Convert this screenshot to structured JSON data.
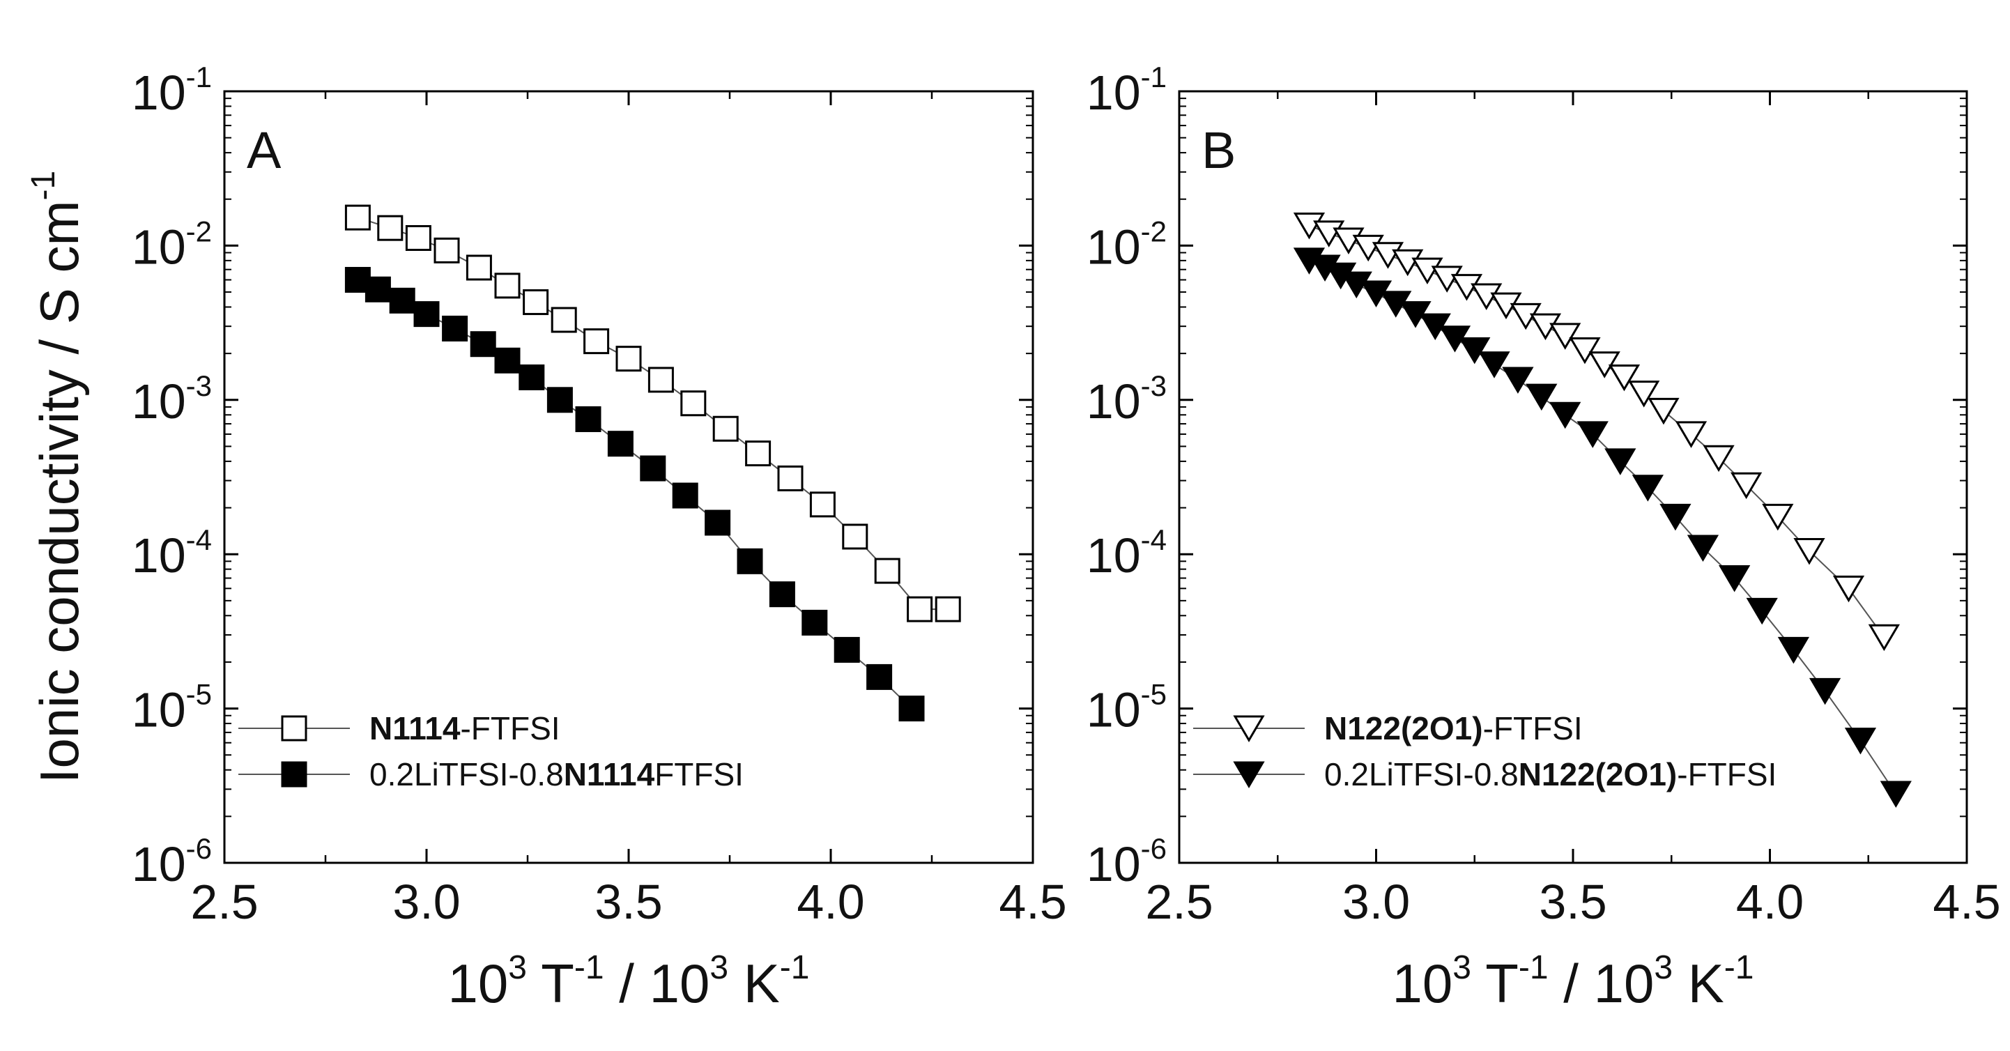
{
  "chart_data": [
    {
      "type": "scatter",
      "panel_label": "A",
      "xlabel": "10^3 T^-1 / 10^3 K^-1",
      "ylabel": "Ionic conductivity / S cm^-1",
      "xlim": [
        2.5,
        4.5
      ],
      "ylim": [
        1e-06,
        0.1
      ],
      "yscale": "log",
      "x_ticks": [
        "2.5",
        "3.0",
        "3.5",
        "4.0",
        "4.5"
      ],
      "y_ticks": [
        {
          "base": "10",
          "exp": "-1",
          "value": 0.1
        },
        {
          "base": "10",
          "exp": "-2",
          "value": 0.01
        },
        {
          "base": "10",
          "exp": "-3",
          "value": 0.001
        },
        {
          "base": "10",
          "exp": "-4",
          "value": 0.0001
        },
        {
          "base": "10",
          "exp": "-5",
          "value": 1e-05
        },
        {
          "base": "10",
          "exp": "-6",
          "value": 1e-06
        }
      ],
      "legend_position": "bottom-left",
      "series": [
        {
          "name": "N1114-FTFSI",
          "legend_parts": [
            {
              "text": "N1114",
              "bold": true
            },
            {
              "text": "-FTFSI",
              "bold": false
            }
          ],
          "marker": "square-open",
          "x": [
            2.83,
            2.91,
            2.98,
            3.05,
            3.13,
            3.2,
            3.27,
            3.34,
            3.42,
            3.5,
            3.58,
            3.66,
            3.74,
            3.82,
            3.9,
            3.98,
            4.06,
            4.14,
            4.22,
            4.29
          ],
          "y": [
            0.0152,
            0.013,
            0.0112,
            0.0093,
            0.0072,
            0.0055,
            0.0043,
            0.0033,
            0.0024,
            0.00185,
            0.00135,
            0.00095,
            0.00065,
            0.00045,
            0.00031,
            0.00021,
            0.00013,
            7.8e-05,
            4.4e-05,
            4.4e-05
          ]
        },
        {
          "name": "0.2LiTFSI-0.8N1114FTFSI",
          "legend_parts": [
            {
              "text": "0.2LiTFSI-0.8",
              "bold": false
            },
            {
              "text": "N1114",
              "bold": true
            },
            {
              "text": "FTFSI",
              "bold": false
            }
          ],
          "marker": "square-filled",
          "x": [
            2.83,
            2.88,
            2.94,
            3.0,
            3.07,
            3.14,
            3.2,
            3.26,
            3.33,
            3.4,
            3.48,
            3.56,
            3.64,
            3.72,
            3.8,
            3.88,
            3.96,
            4.04,
            4.12,
            4.2
          ],
          "y": [
            0.006,
            0.0052,
            0.0044,
            0.0036,
            0.0029,
            0.0023,
            0.0018,
            0.0014,
            0.001,
            0.00075,
            0.00052,
            0.00036,
            0.00024,
            0.00016,
            9e-05,
            5.5e-05,
            3.6e-05,
            2.4e-05,
            1.6e-05,
            1e-05
          ]
        }
      ]
    },
    {
      "type": "scatter",
      "panel_label": "B",
      "xlabel": "10^3 T^-1 / 10^3 K^-1",
      "ylabel": "",
      "xlim": [
        2.5,
        4.5
      ],
      "ylim": [
        1e-06,
        0.1
      ],
      "yscale": "log",
      "x_ticks": [
        "2.5",
        "3.0",
        "3.5",
        "4.0",
        "4.5"
      ],
      "y_ticks": [
        {
          "base": "10",
          "exp": "-1",
          "value": 0.1
        },
        {
          "base": "10",
          "exp": "-2",
          "value": 0.01
        },
        {
          "base": "10",
          "exp": "-3",
          "value": 0.001
        },
        {
          "base": "10",
          "exp": "-4",
          "value": 0.0001
        },
        {
          "base": "10",
          "exp": "-5",
          "value": 1e-05
        },
        {
          "base": "10",
          "exp": "-6",
          "value": 1e-06
        }
      ],
      "legend_position": "bottom-left",
      "series": [
        {
          "name": "N122(2O1)-FTFSI",
          "legend_parts": [
            {
              "text": "N122(2O1)",
              "bold": true
            },
            {
              "text": "-FTFSI",
              "bold": false
            }
          ],
          "marker": "triangle-down-open",
          "x": [
            2.83,
            2.88,
            2.93,
            2.98,
            3.03,
            3.08,
            3.13,
            3.18,
            3.23,
            3.28,
            3.33,
            3.38,
            3.43,
            3.48,
            3.53,
            3.58,
            3.63,
            3.68,
            3.73,
            3.8,
            3.87,
            3.94,
            4.02,
            4.1,
            4.2,
            4.29
          ],
          "y": [
            0.0135,
            0.012,
            0.0108,
            0.0097,
            0.0087,
            0.0078,
            0.0069,
            0.0061,
            0.0054,
            0.0047,
            0.0041,
            0.0035,
            0.003,
            0.0026,
            0.0021,
            0.0017,
            0.0014,
            0.0011,
            0.00085,
            0.0006,
            0.00042,
            0.00028,
            0.000175,
            0.000105,
            6e-05,
            2.9e-05
          ]
        },
        {
          "name": "0.2LiTFSI-0.8N122(2O1)-FTFSI",
          "legend_parts": [
            {
              "text": "0.2LiTFSI-0.8",
              "bold": false
            },
            {
              "text": "N122(2O1)",
              "bold": true
            },
            {
              "text": "-FTFSI",
              "bold": false
            }
          ],
          "marker": "triangle-down-filled",
          "x": [
            2.83,
            2.87,
            2.91,
            2.95,
            3.0,
            3.05,
            3.1,
            3.15,
            3.2,
            3.25,
            3.3,
            3.36,
            3.42,
            3.48,
            3.55,
            3.62,
            3.69,
            3.76,
            3.83,
            3.91,
            3.98,
            4.06,
            4.14,
            4.23,
            4.32
          ],
          "y": [
            0.008,
            0.0072,
            0.0064,
            0.0056,
            0.0049,
            0.0042,
            0.0036,
            0.003,
            0.0025,
            0.0021,
            0.0017,
            0.00135,
            0.00105,
            0.0008,
            0.0006,
            0.0004,
            0.00027,
            0.000175,
            0.00011,
            7e-05,
            4.3e-05,
            2.4e-05,
            1.3e-05,
            6.2e-06,
            2.8e-06
          ]
        }
      ]
    }
  ]
}
